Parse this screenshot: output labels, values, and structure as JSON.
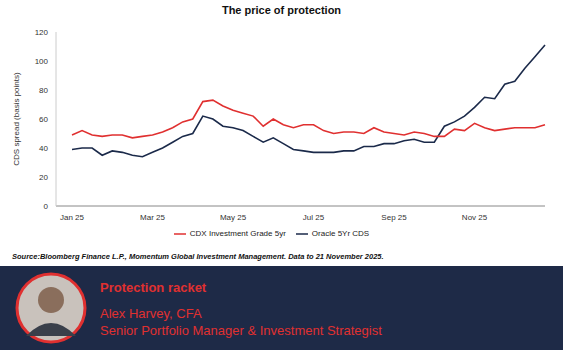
{
  "chart_data": {
    "type": "line",
    "title": "The price of protection",
    "y_label": "CDS spread (basis points)",
    "source": "Source:Bloomberg Finance L.P., Momentum Global Investment Management. Data to 21 November 2025.",
    "categories": [
      "Jan 25",
      null,
      null,
      null,
      null,
      null,
      null,
      null,
      "Mar 25",
      null,
      null,
      null,
      null,
      null,
      null,
      null,
      "May 25",
      null,
      null,
      null,
      null,
      null,
      null,
      null,
      "Jul 25",
      null,
      null,
      null,
      null,
      null,
      null,
      null,
      "Sep 25",
      null,
      null,
      null,
      null,
      null,
      null,
      null,
      "Nov 25",
      null,
      null,
      null,
      null,
      null,
      null,
      null
    ],
    "series": [
      {
        "name": "Oracle 5Yr CDS",
        "color": "#1b2a4a",
        "values": [
          39,
          40,
          40,
          35,
          38,
          37,
          35,
          34,
          37,
          40,
          44,
          48,
          50,
          62,
          60,
          55,
          54,
          52,
          48,
          44,
          47,
          43,
          39,
          38,
          37,
          37,
          37,
          38,
          38,
          41,
          41,
          43,
          43,
          45,
          46,
          44,
          44,
          55,
          58,
          62,
          68,
          75,
          74,
          84,
          86,
          95,
          103,
          111
        ]
      },
      {
        "name": "CDX Investment Grade 5yr",
        "color": "#e03030",
        "values": [
          49,
          52,
          49,
          48,
          49,
          49,
          47,
          48,
          49,
          51,
          54,
          58,
          60,
          72,
          73,
          69,
          66,
          64,
          62,
          55,
          60,
          56,
          54,
          56,
          56,
          52,
          50,
          51,
          51,
          50,
          54,
          51,
          50,
          49,
          51,
          50,
          48,
          48,
          53,
          52,
          57,
          54,
          52,
          53,
          54,
          54,
          54,
          56
        ]
      }
    ],
    "ylim": [
      0,
      120
    ],
    "yticks": [
      0,
      20,
      40,
      60,
      80,
      100,
      120
    ],
    "grid": false,
    "legend": "bottom"
  },
  "banner": {
    "heading": "Protection racket",
    "name": "Alex Harvey, CFA",
    "role": "Senior Portfolio Manager & Investment Strategist"
  }
}
